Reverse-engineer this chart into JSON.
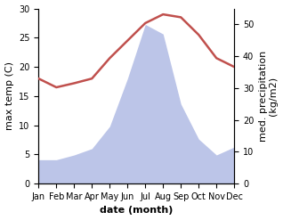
{
  "months": [
    "Jan",
    "Feb",
    "Mar",
    "Apr",
    "May",
    "Jun",
    "Jul",
    "Aug",
    "Sep",
    "Oct",
    "Nov",
    "Dec"
  ],
  "max_temp": [
    18.0,
    16.5,
    17.2,
    18.0,
    21.5,
    24.5,
    27.5,
    29.0,
    28.5,
    25.5,
    21.5,
    20.0
  ],
  "precipitation": [
    7.5,
    7.5,
    9.0,
    11.0,
    18.0,
    33.0,
    50.0,
    47.0,
    25.0,
    14.0,
    9.0,
    11.5
  ],
  "temp_color": "#c0504d",
  "precip_fill_color": "#bcc5e8",
  "temp_ylim": [
    0,
    30
  ],
  "precip_ylim": [
    0,
    55
  ],
  "temp_yticks": [
    0,
    5,
    10,
    15,
    20,
    25,
    30
  ],
  "precip_yticks": [
    0,
    10,
    20,
    30,
    40,
    50
  ],
  "xlabel": "date (month)",
  "ylabel_left": "max temp (C)",
  "ylabel_right": "med. precipitation\n(kg/m2)",
  "temp_linewidth": 1.8,
  "tick_fontsize": 7,
  "label_fontsize": 8
}
